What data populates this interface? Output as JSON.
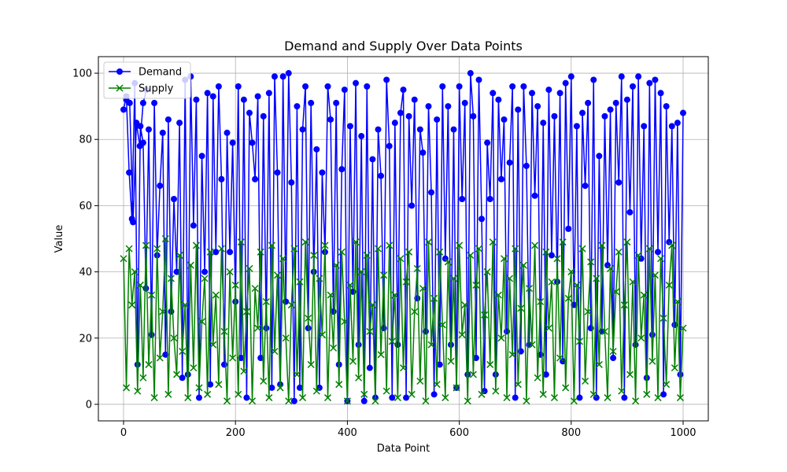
{
  "chart_data": {
    "type": "line",
    "title": "Demand and Supply Over Data Points",
    "xlabel": "Data Point",
    "ylabel": "Value",
    "xlim": [
      -45,
      1045
    ],
    "ylim": [
      -5,
      105
    ],
    "x_ticks": [
      0,
      200,
      400,
      600,
      800,
      1000
    ],
    "y_ticks": [
      0,
      20,
      40,
      60,
      80,
      100
    ],
    "grid": true,
    "legend_position": "top-left",
    "series": [
      {
        "name": "Demand",
        "color": "#0000ff",
        "marker": "circle",
        "x": [
          0,
          5,
          10,
          15,
          20,
          25,
          30,
          35,
          40,
          45,
          50,
          55,
          60,
          65,
          70,
          75,
          80,
          85,
          90,
          95,
          100,
          105,
          110,
          115,
          120,
          125,
          130,
          135,
          140,
          145,
          150,
          155,
          160,
          165,
          170,
          175,
          180,
          185,
          190,
          195,
          200,
          205,
          210,
          215,
          220,
          225,
          230,
          235,
          240,
          245,
          250,
          255,
          260,
          265,
          270,
          275,
          280,
          285,
          290,
          295,
          300,
          305,
          310,
          315,
          320,
          325,
          330,
          335,
          340,
          345,
          350,
          355,
          360,
          365,
          370,
          375,
          380,
          385,
          390,
          395,
          400,
          405,
          410,
          415,
          420,
          425,
          430,
          435,
          440,
          445,
          450,
          455,
          460,
          465,
          470,
          475,
          480,
          485,
          490,
          495,
          500,
          505,
          510,
          515,
          520,
          525,
          530,
          535,
          540,
          545,
          550,
          555,
          560,
          565,
          570,
          575,
          580,
          585,
          590,
          595,
          600,
          605,
          610,
          615,
          620,
          625,
          630,
          635,
          640,
          645,
          650,
          655,
          660,
          665,
          670,
          675,
          680,
          685,
          690,
          695,
          700,
          705,
          710,
          715,
          720,
          725,
          730,
          735,
          740,
          745,
          750,
          755,
          760,
          765,
          770,
          775,
          780,
          785,
          790,
          795,
          800,
          805,
          810,
          815,
          820,
          825,
          830,
          835,
          840,
          845,
          850,
          855,
          860,
          865,
          870,
          875,
          880,
          885,
          890,
          895,
          900,
          905,
          910,
          915,
          920,
          925,
          930,
          935,
          940,
          945,
          950,
          955,
          960,
          965,
          970,
          975,
          980,
          985,
          990,
          995,
          1000
        ],
        "y": [
          89,
          93,
          70,
          56,
          97,
          12,
          84,
          79,
          35,
          83,
          21,
          91,
          45,
          66,
          82,
          15,
          86,
          28,
          62,
          40,
          85,
          8,
          98,
          9,
          99,
          54,
          92,
          2,
          75,
          40,
          94,
          6,
          93,
          46,
          96,
          68,
          12,
          82,
          46,
          79,
          31,
          96,
          14,
          92,
          2,
          88,
          79,
          68,
          93,
          14,
          87,
          23,
          94,
          5,
          99,
          70,
          6,
          99,
          31,
          100,
          67,
          1,
          90,
          5,
          83,
          96,
          23,
          91,
          40,
          77,
          5,
          70,
          46,
          96,
          86,
          28,
          91,
          12,
          71,
          95,
          1,
          84,
          34,
          97,
          18,
          81,
          1,
          96,
          11,
          74,
          2,
          83,
          69,
          23,
          98,
          78,
          2,
          85,
          18,
          88,
          95,
          2,
          87,
          60,
          92,
          32,
          83,
          76,
          22,
          90,
          64,
          3,
          86,
          12,
          96,
          44,
          90,
          18,
          83,
          5,
          96,
          62,
          91,
          9,
          100,
          87,
          14,
          98,
          56,
          4,
          79,
          62,
          94,
          9,
          92,
          68,
          86,
          22,
          73,
          96,
          2,
          89,
          16,
          96,
          72,
          18,
          94,
          63,
          90,
          15,
          85,
          9,
          95,
          45,
          87,
          37,
          94,
          13,
          97,
          53,
          99,
          30,
          84,
          2,
          88,
          66,
          91,
          23,
          98,
          2,
          75,
          22,
          87,
          42,
          89,
          14,
          91,
          67,
          99,
          2,
          92,
          58,
          96,
          18,
          99,
          44,
          84,
          8,
          97,
          21,
          98,
          46,
          94,
          3,
          90,
          49,
          84,
          24,
          85,
          9,
          88
        ],
        "accent_high_x": [
          5,
          11,
          17,
          23,
          29,
          35,
          41
        ],
        "accent_high_y": [
          92,
          91,
          55,
          85,
          78,
          91,
          95
        ]
      },
      {
        "name": "Supply",
        "color": "#008000",
        "marker": "x",
        "x": [
          0,
          5,
          10,
          15,
          20,
          25,
          30,
          35,
          40,
          45,
          50,
          55,
          60,
          65,
          70,
          75,
          80,
          85,
          90,
          95,
          100,
          105,
          110,
          115,
          120,
          125,
          130,
          135,
          140,
          145,
          150,
          155,
          160,
          165,
          170,
          175,
          180,
          185,
          190,
          195,
          200,
          205,
          210,
          215,
          220,
          225,
          230,
          235,
          240,
          245,
          250,
          255,
          260,
          265,
          270,
          275,
          280,
          285,
          290,
          295,
          300,
          305,
          310,
          315,
          320,
          325,
          330,
          335,
          340,
          345,
          350,
          355,
          360,
          365,
          370,
          375,
          380,
          385,
          390,
          395,
          400,
          405,
          410,
          415,
          420,
          425,
          430,
          435,
          440,
          445,
          450,
          455,
          460,
          465,
          470,
          475,
          480,
          485,
          490,
          495,
          500,
          505,
          510,
          515,
          520,
          525,
          530,
          535,
          540,
          545,
          550,
          555,
          560,
          565,
          570,
          575,
          580,
          585,
          590,
          595,
          600,
          605,
          610,
          615,
          620,
          625,
          630,
          635,
          640,
          645,
          650,
          655,
          660,
          665,
          670,
          675,
          680,
          685,
          690,
          695,
          700,
          705,
          710,
          715,
          720,
          725,
          730,
          735,
          740,
          745,
          750,
          755,
          760,
          765,
          770,
          775,
          780,
          785,
          790,
          795,
          800,
          805,
          810,
          815,
          820,
          825,
          830,
          835,
          840,
          845,
          850,
          855,
          860,
          865,
          870,
          875,
          880,
          885,
          890,
          895,
          900,
          905,
          910,
          915,
          920,
          925,
          930,
          935,
          940,
          945,
          950,
          955,
          960,
          965,
          970,
          975,
          980,
          985,
          990,
          995,
          1000
        ],
        "y": [
          44,
          5,
          47,
          30,
          40,
          4,
          36,
          8,
          48,
          12,
          33,
          2,
          47,
          14,
          28,
          50,
          3,
          38,
          20,
          9,
          45,
          16,
          30,
          2,
          42,
          11,
          48,
          5,
          25,
          38,
          3,
          46,
          18,
          33,
          6,
          47,
          22,
          1,
          40,
          14,
          36,
          3,
          49,
          10,
          28,
          41,
          1,
          35,
          23,
          46,
          7,
          31,
          2,
          48,
          16,
          39,
          5,
          44,
          20,
          1,
          30,
          47,
          9,
          37,
          2,
          49,
          26,
          12,
          45,
          4,
          38,
          21,
          48,
          2,
          33,
          17,
          42,
          6,
          46,
          25,
          1,
          36,
          13,
          49,
          8,
          40,
          3,
          45,
          22,
          30,
          1,
          47,
          15,
          39,
          4,
          48,
          19,
          33,
          2,
          44,
          11,
          37,
          46,
          3,
          28,
          41,
          7,
          35,
          1,
          49,
          18,
          32,
          6,
          46,
          24,
          2,
          43,
          13,
          38,
          5,
          48,
          21,
          30,
          1,
          45,
          9,
          36,
          47,
          3,
          27,
          40,
          12,
          49,
          4,
          33,
          20,
          44,
          2,
          38,
          15,
          47,
          6,
          29,
          42,
          1,
          35,
          18,
          48,
          8,
          31,
          3,
          46,
          23,
          37,
          2,
          44,
          14,
          49,
          5,
          32,
          40,
          1,
          36,
          19,
          47,
          7,
          28,
          43,
          3,
          38,
          12,
          48,
          22,
          2,
          41,
          16,
          34,
          46,
          4,
          30,
          49,
          9,
          37,
          1,
          45,
          20,
          33,
          3,
          47,
          13,
          39,
          2,
          44,
          26,
          6,
          36,
          48,
          11,
          31,
          2,
          23
        ]
      }
    ]
  }
}
